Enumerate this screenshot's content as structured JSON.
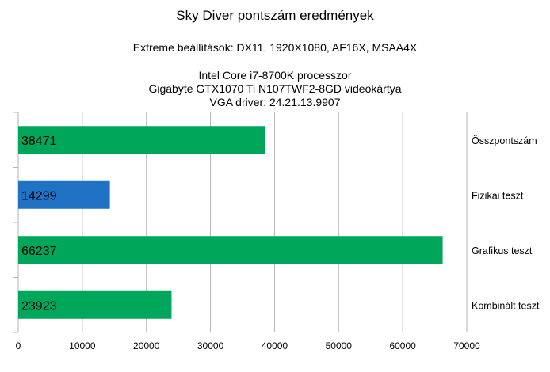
{
  "chart_data": {
    "type": "bar",
    "orientation": "horizontal",
    "title": "Sky Diver pontszám eredmények",
    "subtitle": "Extreme beállítások: DX11, 1920X1080, AF16X, MSAA4X",
    "info_lines": [
      "Intel Core i7-8700K processzor",
      "Gigabyte GTX1070 Ti N107TWF2-8GD videokártya",
      "VGA driver: 24.21.13.9907"
    ],
    "categories": [
      "Összpontszám",
      "Fizikai teszt",
      "Grafikus teszt",
      "Kombinált teszt"
    ],
    "values": [
      38471,
      14299,
      66237,
      23923
    ],
    "data_labels": [
      "38471",
      "14299",
      "66237",
      "23923"
    ],
    "bar_colors": [
      "#00a65a",
      "#1f72c4",
      "#00a65a",
      "#00a65a"
    ],
    "xlim": [
      0,
      70000
    ],
    "xticks": [
      0,
      10000,
      20000,
      30000,
      40000,
      50000,
      60000,
      70000
    ],
    "xtick_labels": [
      "0",
      "10000",
      "20000",
      "30000",
      "40000",
      "50000",
      "60000",
      "70000"
    ],
    "grid": true,
    "legend": "none",
    "category_labels_side": "right",
    "xlabel": "",
    "ylabel": ""
  }
}
